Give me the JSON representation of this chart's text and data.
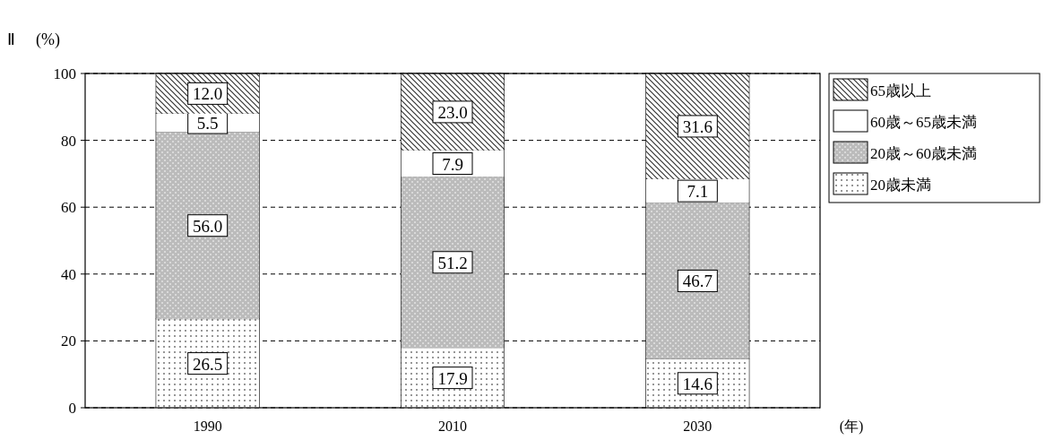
{
  "chart_data": {
    "type": "bar",
    "stacked": true,
    "title": "Ⅱ",
    "ylabel": "(%)",
    "xlabel": "(年)",
    "categories": [
      "1990",
      "2010",
      "2030"
    ],
    "series": [
      {
        "name": "20歳未満",
        "color": "#666666",
        "values": [
          26.5,
          17.9,
          14.6
        ],
        "value_labels": [
          "26.5",
          "17.9",
          "14.6"
        ]
      },
      {
        "name": "20歳～60歳未満",
        "color": "#bbbbbb",
        "values": [
          56.0,
          51.2,
          46.7
        ],
        "value_labels": [
          "56.0",
          "51.2",
          "46.7"
        ]
      },
      {
        "name": "60歳～65歳未満",
        "color": "#ffffff",
        "values": [
          5.5,
          7.9,
          7.1
        ],
        "value_labels": [
          "5.5",
          "7.9",
          "7.1"
        ]
      },
      {
        "name": "65歳以上",
        "color": "#333333",
        "values": [
          12.0,
          23.0,
          31.6
        ],
        "value_labels": [
          "12.0",
          "23.0",
          "31.6"
        ]
      }
    ],
    "ylim": [
      0,
      100
    ],
    "yticks": [
      0,
      20,
      40,
      60,
      80,
      100
    ],
    "grid": "y",
    "legend": "right"
  }
}
